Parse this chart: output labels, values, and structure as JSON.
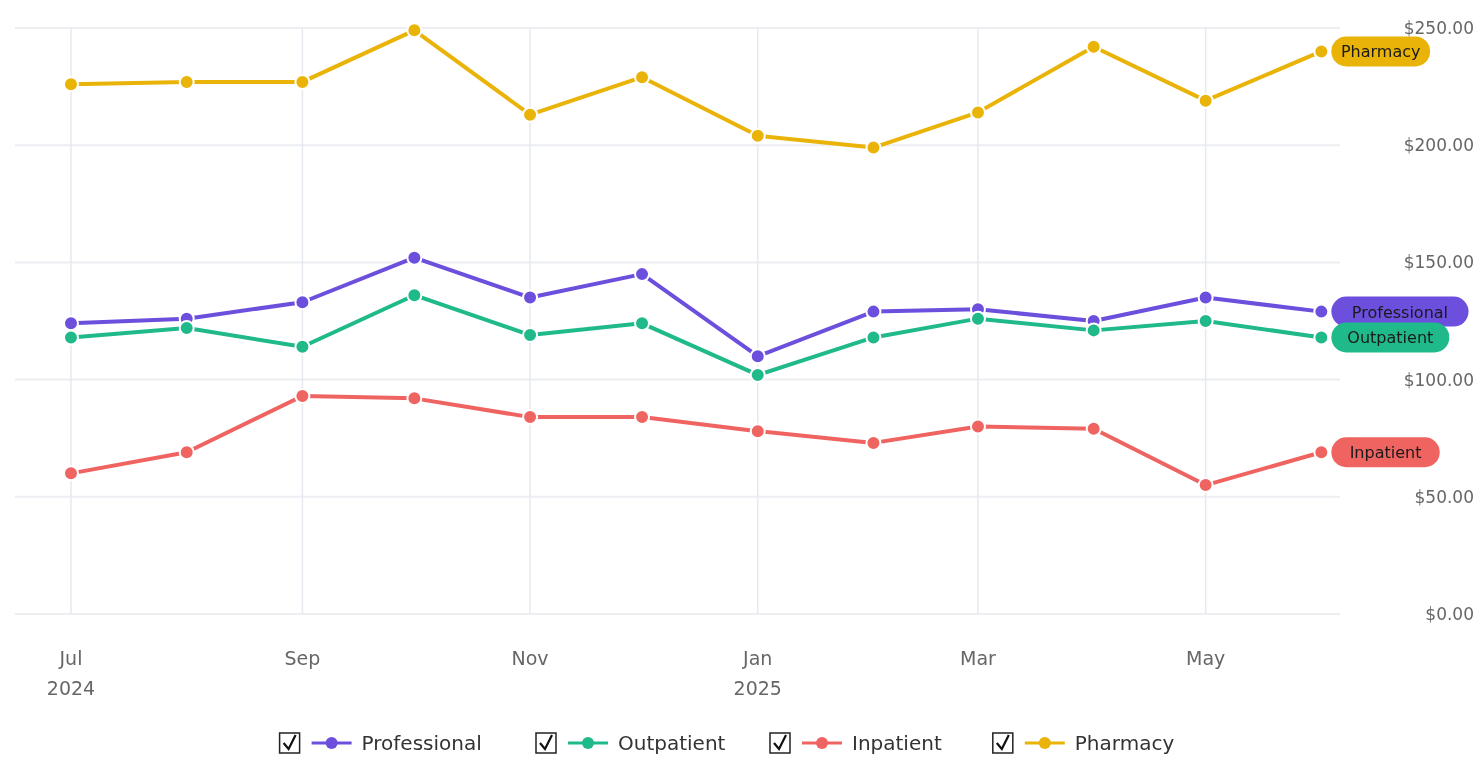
{
  "chart_data": {
    "type": "line",
    "x": [
      "2024-07",
      "2024-08",
      "2024-09",
      "2024-10",
      "2024-11",
      "2024-12",
      "2025-01",
      "2025-02",
      "2025-03",
      "2025-04",
      "2025-05",
      "2025-06"
    ],
    "xlim": [
      "2024-06-16",
      "2025-06-06"
    ],
    "xticks": [
      {
        "value": "2024-07",
        "label": "Jul\n2024"
      },
      {
        "value": "2024-09",
        "label": "Sep"
      },
      {
        "value": "2024-11",
        "label": "Nov"
      },
      {
        "value": "2025-01",
        "label": "Jan\n2025"
      },
      {
        "value": "2025-03",
        "label": "Mar"
      },
      {
        "value": "2025-05",
        "label": "May"
      }
    ],
    "ylim": [
      0,
      250
    ],
    "yticks": [
      {
        "value": 0,
        "label": "$0.00"
      },
      {
        "value": 50,
        "label": "$50.00"
      },
      {
        "value": 100,
        "label": "$100.00"
      },
      {
        "value": 150,
        "label": "$150.00"
      },
      {
        "value": 200,
        "label": "$200.00"
      },
      {
        "value": 250,
        "label": "$250.00"
      }
    ],
    "series": [
      {
        "name": "Professional",
        "color": "#6c4fdc",
        "values": [
          124,
          126,
          133,
          152,
          135,
          145,
          110,
          129,
          130,
          125,
          135,
          129
        ]
      },
      {
        "name": "Outpatient",
        "color": "#20b98a",
        "values": [
          118,
          122,
          114,
          136,
          119,
          124,
          102,
          118,
          126,
          121,
          125,
          118
        ]
      },
      {
        "name": "Inpatient",
        "color": "#ef6461",
        "values": [
          60,
          69,
          93,
          92,
          84,
          84,
          78,
          73,
          80,
          79,
          55,
          69
        ]
      },
      {
        "name": "Pharmacy",
        "color": "#eab308",
        "values": [
          226,
          227,
          227,
          249,
          213,
          229,
          204,
          199,
          214,
          242,
          219,
          240
        ]
      }
    ],
    "grid": true,
    "legend": "bottom",
    "marker": "circle",
    "line_style": "solid"
  }
}
